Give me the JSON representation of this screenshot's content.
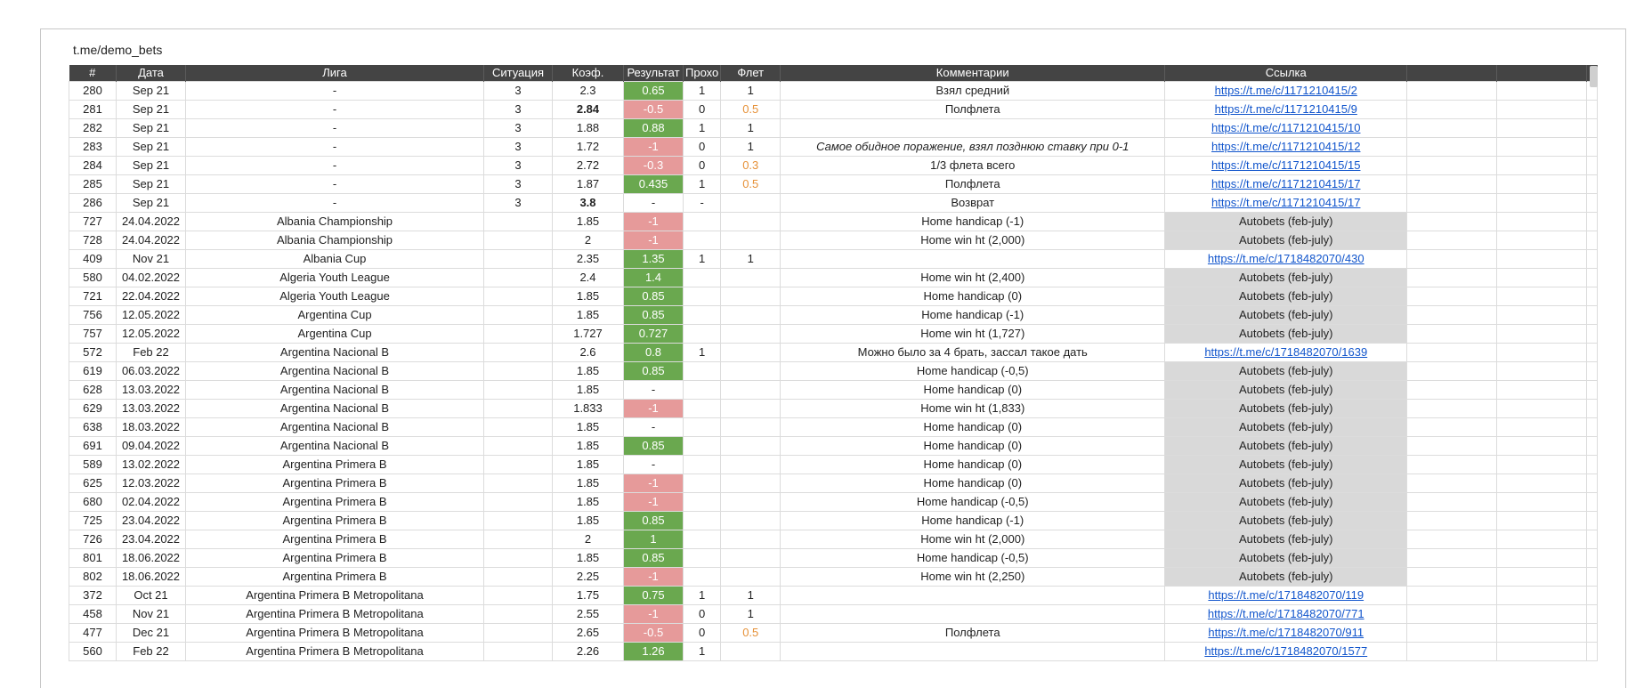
{
  "sheet_title": "t.me/demo_bets",
  "headers": [
    "#",
    "Дата",
    "Лига",
    "Ситуация",
    "Коэф.",
    "Результат",
    "Прохо",
    "Флет",
    "Комментарии",
    "Ссылка",
    "",
    "",
    ""
  ],
  "rows": [
    {
      "num": "280",
      "date": "Sep 21",
      "league": "-",
      "sit": "3",
      "coef": "2.3",
      "res": "0.65",
      "res_type": "pos",
      "pass": "1",
      "flet": "1",
      "flet_orange": false,
      "comment": "Взял средний",
      "link": "https://t.me/c/1171210415/2",
      "link_type": "url"
    },
    {
      "num": "281",
      "date": "Sep 21",
      "league": "-",
      "sit": "3",
      "coef": "2.84",
      "coef_bold": true,
      "res": "-0.5",
      "res_type": "neg",
      "pass": "0",
      "flet": "0.5",
      "flet_orange": true,
      "comment": "Полфлета",
      "link": "https://t.me/c/1171210415/9",
      "link_type": "url"
    },
    {
      "num": "282",
      "date": "Sep 21",
      "league": "-",
      "sit": "3",
      "coef": "1.88",
      "res": "0.88",
      "res_type": "pos",
      "pass": "1",
      "flet": "1",
      "flet_orange": false,
      "comment": "",
      "link": "https://t.me/c/1171210415/10",
      "link_type": "url"
    },
    {
      "num": "283",
      "date": "Sep 21",
      "league": "-",
      "sit": "3",
      "coef": "1.72",
      "res": "-1",
      "res_type": "neg",
      "pass": "0",
      "flet": "1",
      "flet_orange": false,
      "comment": "Самое обидное поражение, взял позднюю ставку при 0-1",
      "comment_italic": true,
      "link": "https://t.me/c/1171210415/12",
      "link_type": "url"
    },
    {
      "num": "284",
      "date": "Sep 21",
      "league": "-",
      "sit": "3",
      "coef": "2.72",
      "res": "-0.3",
      "res_type": "neg",
      "pass": "0",
      "flet": "0.3",
      "flet_orange": true,
      "comment": "1/3 флета всего",
      "link": "https://t.me/c/1171210415/15",
      "link_type": "url"
    },
    {
      "num": "285",
      "date": "Sep 21",
      "league": "-",
      "sit": "3",
      "coef": "1.87",
      "res": "0.435",
      "res_type": "pos",
      "pass": "1",
      "flet": "0.5",
      "flet_orange": true,
      "comment": "Полфлета",
      "link": "https://t.me/c/1171210415/17",
      "link_type": "url"
    },
    {
      "num": "286",
      "date": "Sep 21",
      "league": "-",
      "sit": "3",
      "coef": "3.8",
      "coef_bold": true,
      "res": "-",
      "res_type": "none",
      "pass": "-",
      "flet": "",
      "flet_orange": false,
      "comment": "Возврат",
      "link": "https://t.me/c/1171210415/17",
      "link_type": "url"
    },
    {
      "num": "727",
      "date": "24.04.2022",
      "league": "Albania Championship",
      "league_lg": true,
      "sit": "",
      "coef": "1.85",
      "res": "-1",
      "res_type": "neg",
      "pass": "",
      "flet": "",
      "comment": "Home handicap (-1)",
      "link": "Autobets (feb-july)",
      "link_type": "gray"
    },
    {
      "num": "728",
      "date": "24.04.2022",
      "league": "Albania Championship",
      "league_lg": true,
      "sit": "",
      "coef": "2",
      "res": "-1",
      "res_type": "neg",
      "pass": "",
      "flet": "",
      "comment": "Home win ht (2,000)",
      "link": "Autobets (feb-july)",
      "link_type": "gray"
    },
    {
      "num": "409",
      "date": "Nov 21",
      "league": "Albania Cup",
      "sit": "",
      "coef": "2.35",
      "res": "1.35",
      "res_type": "pos",
      "pass": "1",
      "flet": "1",
      "flet_orange": false,
      "comment": "",
      "link": "https://t.me/c/1718482070/430",
      "link_type": "url"
    },
    {
      "num": "580",
      "date": "04.02.2022",
      "league": "Algeria Youth League",
      "league_lg": true,
      "sit": "",
      "coef": "2.4",
      "res": "1.4",
      "res_type": "pos",
      "pass": "",
      "flet": "",
      "comment": "Home win ht (2,400)",
      "link": "Autobets (feb-july)",
      "link_type": "gray"
    },
    {
      "num": "721",
      "date": "22.04.2022",
      "league": "Algeria Youth League",
      "league_lg": true,
      "sit": "",
      "coef": "1.85",
      "res": "0.85",
      "res_type": "pos",
      "pass": "",
      "flet": "",
      "comment": "Home handicap (0)",
      "link": "Autobets (feb-july)",
      "link_type": "gray"
    },
    {
      "num": "756",
      "date": "12.05.2022",
      "league": "Argentina Cup",
      "league_lg": true,
      "sit": "",
      "coef": "1.85",
      "res": "0.85",
      "res_type": "pos",
      "pass": "",
      "flet": "",
      "comment": "Home handicap (-1)",
      "link": "Autobets (feb-july)",
      "link_type": "gray"
    },
    {
      "num": "757",
      "date": "12.05.2022",
      "league": "Argentina Cup",
      "league_lg": true,
      "sit": "",
      "coef": "1.727",
      "res": "0.727",
      "res_type": "pos",
      "pass": "",
      "flet": "",
      "comment": "Home win ht (1,727)",
      "link": "Autobets (feb-july)",
      "link_type": "gray"
    },
    {
      "num": "572",
      "date": "Feb 22",
      "league": "Argentina Nacional B",
      "sit": "",
      "coef": "2.6",
      "res": "0.8",
      "res_type": "pos",
      "pass": "1",
      "flet": "",
      "comment": "Можно было за 4 брать, зассал такое дать",
      "link": "https://t.me/c/1718482070/1639",
      "link_type": "url"
    },
    {
      "num": "619",
      "date": "06.03.2022",
      "league": "Argentina Nacional B",
      "league_lg": true,
      "sit": "",
      "coef": "1.85",
      "res": "0.85",
      "res_type": "pos",
      "pass": "",
      "flet": "",
      "comment": "Home handicap (-0,5)",
      "link": "Autobets (feb-july)",
      "link_type": "gray"
    },
    {
      "num": "628",
      "date": "13.03.2022",
      "league": "Argentina Nacional B",
      "league_lg": true,
      "sit": "",
      "coef": "1.85",
      "res": "-",
      "res_type": "none",
      "pass": "",
      "flet": "",
      "comment": "Home handicap (0)",
      "link": "Autobets (feb-july)",
      "link_type": "gray"
    },
    {
      "num": "629",
      "date": "13.03.2022",
      "league": "Argentina Nacional B",
      "league_lg": true,
      "sit": "",
      "coef": "1.833",
      "res": "-1",
      "res_type": "neg",
      "pass": "",
      "flet": "",
      "comment": "Home win ht (1,833)",
      "link": "Autobets (feb-july)",
      "link_type": "gray"
    },
    {
      "num": "638",
      "date": "18.03.2022",
      "league": "Argentina Nacional B",
      "league_lg": true,
      "sit": "",
      "coef": "1.85",
      "res": "-",
      "res_type": "none",
      "pass": "",
      "flet": "",
      "comment": "Home handicap (0)",
      "link": "Autobets (feb-july)",
      "link_type": "gray"
    },
    {
      "num": "691",
      "date": "09.04.2022",
      "league": "Argentina Nacional B",
      "league_lg": true,
      "sit": "",
      "coef": "1.85",
      "res": "0.85",
      "res_type": "pos",
      "pass": "",
      "flet": "",
      "comment": "Home handicap (0)",
      "link": "Autobets (feb-july)",
      "link_type": "gray"
    },
    {
      "num": "589",
      "date": "13.02.2022",
      "league": "Argentina Primera B",
      "league_lg": true,
      "sit": "",
      "coef": "1.85",
      "res": "-",
      "res_type": "none",
      "pass": "",
      "flet": "",
      "comment": "Home handicap (0)",
      "link": "Autobets (feb-july)",
      "link_type": "gray"
    },
    {
      "num": "625",
      "date": "12.03.2022",
      "league": "Argentina Primera B",
      "league_lg": true,
      "sit": "",
      "coef": "1.85",
      "res": "-1",
      "res_type": "neg",
      "pass": "",
      "flet": "",
      "comment": "Home handicap (0)",
      "link": "Autobets (feb-july)",
      "link_type": "gray"
    },
    {
      "num": "680",
      "date": "02.04.2022",
      "league": "Argentina Primera B",
      "league_lg": true,
      "sit": "",
      "coef": "1.85",
      "res": "-1",
      "res_type": "neg",
      "pass": "",
      "flet": "",
      "comment": "Home handicap (-0,5)",
      "link": "Autobets (feb-july)",
      "link_type": "gray"
    },
    {
      "num": "725",
      "date": "23.04.2022",
      "league": "Argentina Primera B",
      "league_lg": true,
      "sit": "",
      "coef": "1.85",
      "res": "0.85",
      "res_type": "pos",
      "pass": "",
      "flet": "",
      "comment": "Home handicap (-1)",
      "link": "Autobets (feb-july)",
      "link_type": "gray"
    },
    {
      "num": "726",
      "date": "23.04.2022",
      "league": "Argentina Primera B",
      "league_lg": true,
      "sit": "",
      "coef": "2",
      "res": "1",
      "res_type": "pos",
      "pass": "",
      "flet": "",
      "comment": "Home win ht (2,000)",
      "link": "Autobets (feb-july)",
      "link_type": "gray"
    },
    {
      "num": "801",
      "date": "18.06.2022",
      "league": "Argentina Primera B",
      "league_lg": true,
      "sit": "",
      "coef": "1.85",
      "res": "0.85",
      "res_type": "pos",
      "pass": "",
      "flet": "",
      "comment": "Home handicap (-0,5)",
      "link": "Autobets (feb-july)",
      "link_type": "gray"
    },
    {
      "num": "802",
      "date": "18.06.2022",
      "league": "Argentina Primera B",
      "league_lg": true,
      "sit": "",
      "coef": "2.25",
      "res": "-1",
      "res_type": "neg",
      "pass": "",
      "flet": "",
      "comment": "Home win ht (2,250)",
      "link": "Autobets (feb-july)",
      "link_type": "gray"
    },
    {
      "num": "372",
      "date": "Oct 21",
      "league": "Argentina Primera B Metropolitana",
      "sit": "",
      "coef": "1.75",
      "res": "0.75",
      "res_type": "pos",
      "pass": "1",
      "flet": "1",
      "flet_orange": false,
      "comment": "",
      "link": "https://t.me/c/1718482070/119",
      "link_type": "url"
    },
    {
      "num": "458",
      "date": "Nov 21",
      "league": "Argentina Primera B Metropolitana",
      "sit": "",
      "coef": "2.55",
      "res": "-1",
      "res_type": "neg",
      "pass": "0",
      "flet": "1",
      "flet_orange": false,
      "comment": "",
      "link": "https://t.me/c/1718482070/771",
      "link_type": "url"
    },
    {
      "num": "477",
      "date": "Dec 21",
      "league": "Argentina Primera B Metropolitana",
      "sit": "",
      "coef": "2.65",
      "res": "-0.5",
      "res_type": "neg",
      "pass": "0",
      "flet": "0.5",
      "flet_orange": true,
      "comment": "Полфлета",
      "link": "https://t.me/c/1718482070/911",
      "link_type": "url"
    },
    {
      "num": "560",
      "date": "Feb 22",
      "league": "Argentina Primera B Metropolitana",
      "sit": "",
      "coef": "2.26",
      "res": "1.26",
      "res_type": "pos",
      "pass": "1",
      "flet": "",
      "comment": "",
      "link": "https://t.me/c/1718482070/1577",
      "link_type": "url"
    }
  ]
}
